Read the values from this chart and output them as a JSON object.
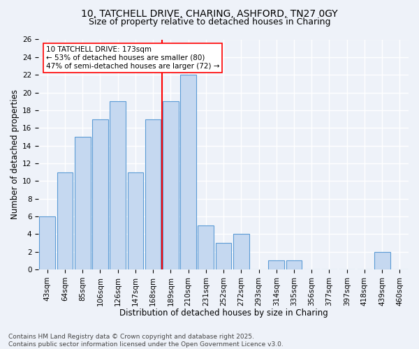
{
  "title_line1": "10, TATCHELL DRIVE, CHARING, ASHFORD, TN27 0GY",
  "title_line2": "Size of property relative to detached houses in Charing",
  "xlabel": "Distribution of detached houses by size in Charing",
  "ylabel": "Number of detached properties",
  "footer_line1": "Contains HM Land Registry data © Crown copyright and database right 2025.",
  "footer_line2": "Contains public sector information licensed under the Open Government Licence v3.0.",
  "categories": [
    "43sqm",
    "64sqm",
    "85sqm",
    "106sqm",
    "126sqm",
    "147sqm",
    "168sqm",
    "189sqm",
    "210sqm",
    "231sqm",
    "252sqm",
    "272sqm",
    "293sqm",
    "314sqm",
    "335sqm",
    "356sqm",
    "377sqm",
    "397sqm",
    "418sqm",
    "439sqm",
    "460sqm"
  ],
  "values": [
    6,
    11,
    15,
    17,
    19,
    11,
    17,
    19,
    22,
    5,
    3,
    4,
    0,
    1,
    1,
    0,
    0,
    0,
    0,
    2,
    0
  ],
  "bar_color": "#c5d8f0",
  "bar_edge_color": "#5b9bd5",
  "vline_color": "red",
  "annotation_line1": "10 TATCHELL DRIVE: 173sqm",
  "annotation_line2": "← 53% of detached houses are smaller (80)",
  "annotation_line3": "47% of semi-detached houses are larger (72) →",
  "annotation_box_color": "white",
  "annotation_box_edge_color": "red",
  "ylim": [
    0,
    26
  ],
  "yticks": [
    0,
    2,
    4,
    6,
    8,
    10,
    12,
    14,
    16,
    18,
    20,
    22,
    24,
    26
  ],
  "background_color": "#eef2f9",
  "grid_color": "white",
  "title_fontsize": 10,
  "subtitle_fontsize": 9,
  "axis_label_fontsize": 8.5,
  "tick_fontsize": 7.5,
  "annotation_fontsize": 7.5,
  "footer_fontsize": 6.5
}
